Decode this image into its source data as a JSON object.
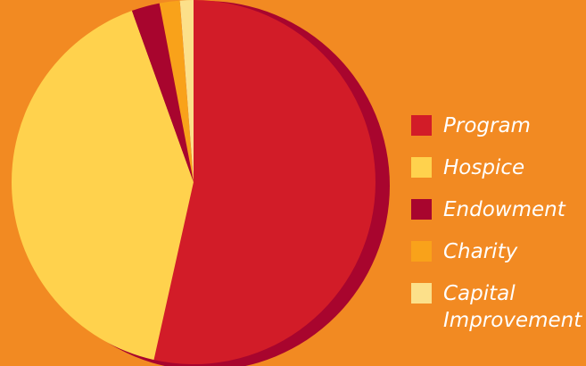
{
  "chart_data": {
    "type": "pie",
    "title": "",
    "series": [
      {
        "name": "Program",
        "value": 53.5,
        "color": "#D21C28"
      },
      {
        "name": "Hospice",
        "value": 41.0,
        "color": "#FFD24D"
      },
      {
        "name": "Endowment",
        "value": 2.5,
        "color": "#A8052E"
      },
      {
        "name": "Charity",
        "value": 1.8,
        "color": "#F9A21A"
      },
      {
        "name": "Capital Improvement",
        "value": 1.2,
        "color": "#FCE08A"
      }
    ],
    "legend_position": "right"
  },
  "colors": {
    "background": "#F28A22",
    "shadow": "#A8052E",
    "legend_text": "#FFFFFF"
  }
}
